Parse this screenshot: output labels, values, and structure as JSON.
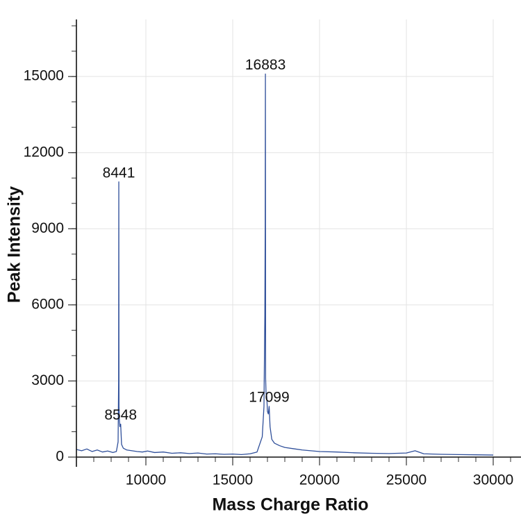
{
  "chart_data": {
    "type": "line",
    "x_label": "Mass Charge Ratio",
    "y_label": "Peak Intensity",
    "xlim": [
      6000,
      31600
    ],
    "ylim": [
      0,
      17250
    ],
    "xticks": [
      10000,
      15000,
      20000,
      25000,
      30000
    ],
    "yticks": [
      0,
      3000,
      6000,
      9000,
      12000,
      15000
    ],
    "grid": true,
    "series": [
      {
        "color": "#2f4f9a",
        "x": [
          6000,
          6300,
          6600,
          6900,
          7200,
          7500,
          7800,
          8100,
          8300,
          8400,
          8430,
          8441,
          8452,
          8470,
          8500,
          8548,
          8600,
          8700,
          8900,
          9200,
          9500,
          9800,
          10100,
          10500,
          11000,
          11500,
          12000,
          12500,
          13000,
          13500,
          14000,
          14500,
          15000,
          15500,
          16000,
          16400,
          16700,
          16800,
          16850,
          16870,
          16883,
          16895,
          16920,
          16960,
          17000,
          17050,
          17099,
          17150,
          17250,
          17400,
          17700,
          18000,
          18500,
          19000,
          19500,
          20000,
          21000,
          22000,
          23000,
          24000,
          25000,
          25500,
          26000,
          27000,
          28000,
          29000,
          30000
        ],
        "values": [
          300,
          250,
          320,
          220,
          280,
          200,
          240,
          180,
          220,
          600,
          3000,
          10850,
          2000,
          1500,
          1200,
          1300,
          500,
          350,
          280,
          250,
          220,
          200,
          240,
          180,
          200,
          150,
          170,
          140,
          160,
          120,
          130,
          110,
          120,
          100,
          130,
          200,
          800,
          2000,
          5600,
          9000,
          15100,
          3100,
          2500,
          2400,
          1800,
          1700,
          2000,
          1200,
          700,
          550,
          450,
          380,
          330,
          280,
          250,
          220,
          200,
          170,
          150,
          140,
          160,
          250,
          130,
          110,
          100,
          90,
          80
        ]
      }
    ],
    "annotations": [
      {
        "label": "8441",
        "x": 8441,
        "y": 10850
      },
      {
        "label": "8548",
        "x": 8548,
        "y": 1300
      },
      {
        "label": "16883",
        "x": 16883,
        "y": 15100
      },
      {
        "label": "17099",
        "x": 17099,
        "y": 2000
      }
    ]
  }
}
